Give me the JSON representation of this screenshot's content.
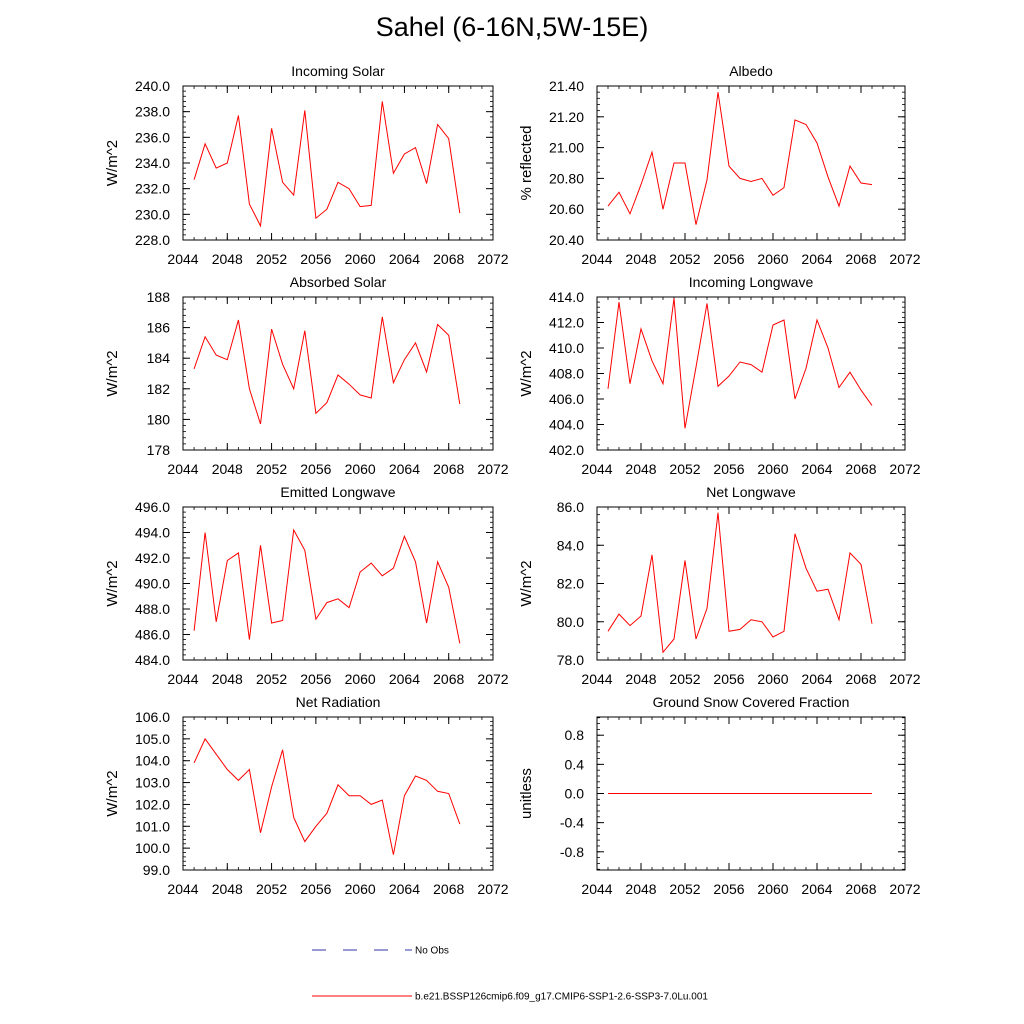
{
  "title": "Sahel (6-16N,5W-15E)",
  "colors": {
    "model_line": "#ff0000",
    "obs_line": "#3333aa",
    "axis": "#000000"
  },
  "legend": {
    "obs_label": "No Obs",
    "model_label": "b.e21.BSSP126cmip6.f09_g17.CMIP6-SSP1-2.6-SSP3-7.0Lu.001"
  },
  "chart_data": [
    {
      "type": "line",
      "title": "Incoming Solar",
      "ylabel": "W/m^2",
      "xlim": [
        2044,
        2072
      ],
      "ylim": [
        228,
        240
      ],
      "xticks": [
        2044,
        2048,
        2052,
        2056,
        2060,
        2064,
        2068,
        2072
      ],
      "yticks": [
        228,
        230,
        232,
        234,
        236,
        238,
        240
      ],
      "ytick_labels": [
        "228.0",
        "230.0",
        "232.0",
        "234.0",
        "236.0",
        "238.0",
        "240.0"
      ],
      "x": [
        2045,
        2046,
        2047,
        2048,
        2049,
        2050,
        2051,
        2052,
        2053,
        2054,
        2055,
        2056,
        2057,
        2058,
        2059,
        2060,
        2061,
        2062,
        2063,
        2064,
        2065,
        2066,
        2067,
        2068,
        2069
      ],
      "series": [
        {
          "values": [
            232.7,
            235.5,
            233.6,
            234.0,
            237.7,
            230.8,
            229.1,
            236.7,
            232.5,
            231.5,
            238.1,
            229.7,
            230.4,
            232.5,
            232.0,
            230.6,
            230.7,
            238.8,
            233.2,
            234.7,
            235.2,
            232.4,
            237.0,
            235.9,
            230.1
          ]
        }
      ]
    },
    {
      "type": "line",
      "title": "Albedo",
      "ylabel": "% reflected",
      "xlim": [
        2044,
        2072
      ],
      "ylim": [
        20.4,
        21.4
      ],
      "xticks": [
        2044,
        2048,
        2052,
        2056,
        2060,
        2064,
        2068,
        2072
      ],
      "yticks": [
        20.4,
        20.6,
        20.8,
        21.0,
        21.2,
        21.4
      ],
      "ytick_labels": [
        "20.40",
        "20.60",
        "20.80",
        "21.00",
        "21.20",
        "21.40"
      ],
      "x": [
        2045,
        2046,
        2047,
        2048,
        2049,
        2050,
        2051,
        2052,
        2053,
        2054,
        2055,
        2056,
        2057,
        2058,
        2059,
        2060,
        2061,
        2062,
        2063,
        2064,
        2065,
        2066,
        2067,
        2068,
        2069
      ],
      "series": [
        {
          "values": [
            20.62,
            20.71,
            20.57,
            20.76,
            20.97,
            20.6,
            20.9,
            20.9,
            20.5,
            20.79,
            21.36,
            20.88,
            20.8,
            20.78,
            20.8,
            20.69,
            20.74,
            21.18,
            21.15,
            21.03,
            20.81,
            20.62,
            20.88,
            20.77,
            20.76
          ]
        }
      ]
    },
    {
      "type": "line",
      "title": "Absorbed Solar",
      "ylabel": "W/m^2",
      "xlim": [
        2044,
        2072
      ],
      "ylim": [
        178,
        188
      ],
      "xticks": [
        2044,
        2048,
        2052,
        2056,
        2060,
        2064,
        2068,
        2072
      ],
      "yticks": [
        178,
        180,
        182,
        184,
        186,
        188
      ],
      "ytick_labels": [
        "178",
        "180",
        "182",
        "184",
        "186",
        "188"
      ],
      "x": [
        2045,
        2046,
        2047,
        2048,
        2049,
        2050,
        2051,
        2052,
        2053,
        2054,
        2055,
        2056,
        2057,
        2058,
        2059,
        2060,
        2061,
        2062,
        2063,
        2064,
        2065,
        2066,
        2067,
        2068,
        2069
      ],
      "series": [
        {
          "values": [
            183.3,
            185.4,
            184.2,
            183.9,
            186.5,
            182.0,
            179.7,
            185.9,
            183.6,
            182.0,
            185.8,
            180.4,
            181.1,
            182.9,
            182.3,
            181.6,
            181.4,
            186.7,
            182.4,
            183.9,
            185.0,
            183.1,
            186.2,
            185.5,
            181.0
          ]
        }
      ]
    },
    {
      "type": "line",
      "title": "Incoming Longwave",
      "ylabel": "W/m^2",
      "xlim": [
        2044,
        2072
      ],
      "ylim": [
        402,
        414
      ],
      "xticks": [
        2044,
        2048,
        2052,
        2056,
        2060,
        2064,
        2068,
        2072
      ],
      "yticks": [
        402,
        404,
        406,
        408,
        410,
        412,
        414
      ],
      "ytick_labels": [
        "402.0",
        "404.0",
        "406.0",
        "408.0",
        "410.0",
        "412.0",
        "414.0"
      ],
      "x": [
        2045,
        2046,
        2047,
        2048,
        2049,
        2050,
        2051,
        2052,
        2053,
        2054,
        2055,
        2056,
        2057,
        2058,
        2059,
        2060,
        2061,
        2062,
        2063,
        2064,
        2065,
        2066,
        2067,
        2068,
        2069
      ],
      "series": [
        {
          "values": [
            406.8,
            413.6,
            407.2,
            411.5,
            409.0,
            407.2,
            413.9,
            403.7,
            408.5,
            413.5,
            407.0,
            407.8,
            408.9,
            408.7,
            408.1,
            411.8,
            412.2,
            406.0,
            408.4,
            412.2,
            410.0,
            406.9,
            408.1,
            406.7,
            405.5
          ]
        }
      ]
    },
    {
      "type": "line",
      "title": "Emitted Longwave",
      "ylabel": "W/m^2",
      "xlim": [
        2044,
        2072
      ],
      "ylim": [
        484,
        496
      ],
      "xticks": [
        2044,
        2048,
        2052,
        2056,
        2060,
        2064,
        2068,
        2072
      ],
      "yticks": [
        484,
        486,
        488,
        490,
        492,
        494,
        496
      ],
      "ytick_labels": [
        "484.0",
        "486.0",
        "488.0",
        "490.0",
        "492.0",
        "494.0",
        "496.0"
      ],
      "x": [
        2045,
        2046,
        2047,
        2048,
        2049,
        2050,
        2051,
        2052,
        2053,
        2054,
        2055,
        2056,
        2057,
        2058,
        2059,
        2060,
        2061,
        2062,
        2063,
        2064,
        2065,
        2066,
        2067,
        2068,
        2069
      ],
      "series": [
        {
          "values": [
            486.3,
            494.0,
            487.0,
            491.8,
            492.4,
            485.6,
            493.0,
            486.9,
            487.1,
            494.2,
            492.6,
            487.2,
            488.5,
            488.8,
            488.1,
            490.9,
            491.6,
            490.6,
            491.2,
            493.7,
            491.7,
            486.9,
            491.7,
            489.7,
            485.3
          ]
        }
      ]
    },
    {
      "type": "line",
      "title": "Net Longwave",
      "ylabel": "W/m^2",
      "xlim": [
        2044,
        2072
      ],
      "ylim": [
        78,
        86
      ],
      "xticks": [
        2044,
        2048,
        2052,
        2056,
        2060,
        2064,
        2068,
        2072
      ],
      "yticks": [
        78,
        80,
        82,
        84,
        86
      ],
      "ytick_labels": [
        "78.0",
        "80.0",
        "82.0",
        "84.0",
        "86.0"
      ],
      "x": [
        2045,
        2046,
        2047,
        2048,
        2049,
        2050,
        2051,
        2052,
        2053,
        2054,
        2055,
        2056,
        2057,
        2058,
        2059,
        2060,
        2061,
        2062,
        2063,
        2064,
        2065,
        2066,
        2067,
        2068,
        2069
      ],
      "series": [
        {
          "values": [
            79.5,
            80.4,
            79.8,
            80.3,
            83.5,
            78.4,
            79.1,
            83.2,
            79.1,
            80.7,
            85.7,
            79.5,
            79.6,
            80.1,
            80.0,
            79.2,
            79.5,
            84.6,
            82.8,
            81.6,
            81.7,
            80.1,
            83.6,
            83.0,
            79.9
          ]
        }
      ]
    },
    {
      "type": "line",
      "title": "Net Radiation",
      "ylabel": "W/m^2",
      "xlim": [
        2044,
        2072
      ],
      "ylim": [
        99,
        106
      ],
      "xticks": [
        2044,
        2048,
        2052,
        2056,
        2060,
        2064,
        2068,
        2072
      ],
      "yticks": [
        99,
        100,
        101,
        102,
        103,
        104,
        105,
        106
      ],
      "ytick_labels": [
        "99.0",
        "100.0",
        "101.0",
        "102.0",
        "103.0",
        "104.0",
        "105.0",
        "106.0"
      ],
      "x": [
        2045,
        2046,
        2047,
        2048,
        2049,
        2050,
        2051,
        2052,
        2053,
        2054,
        2055,
        2056,
        2057,
        2058,
        2059,
        2060,
        2061,
        2062,
        2063,
        2064,
        2065,
        2066,
        2067,
        2068,
        2069
      ],
      "series": [
        {
          "values": [
            103.9,
            105.0,
            104.3,
            103.6,
            103.1,
            103.6,
            100.7,
            102.8,
            104.5,
            101.4,
            100.3,
            101.0,
            101.6,
            102.9,
            102.4,
            102.4,
            102.0,
            102.2,
            99.7,
            102.4,
            103.3,
            103.1,
            102.6,
            102.5,
            101.1
          ]
        }
      ]
    },
    {
      "type": "line",
      "title": "Ground Snow Covered Fraction",
      "ylabel": "unitless",
      "xlim": [
        2044,
        2072
      ],
      "ylim": [
        -1.05,
        1.05
      ],
      "xticks": [
        2044,
        2048,
        2052,
        2056,
        2060,
        2064,
        2068,
        2072
      ],
      "yticks": [
        -0.8,
        -0.4,
        0.0,
        0.4,
        0.8
      ],
      "ytick_labels": [
        "-0.8",
        "-0.4",
        "0.0",
        "0.4",
        "0.8"
      ],
      "x": [
        2045,
        2069
      ],
      "series": [
        {
          "values": [
            0.0,
            0.0
          ]
        }
      ]
    }
  ]
}
